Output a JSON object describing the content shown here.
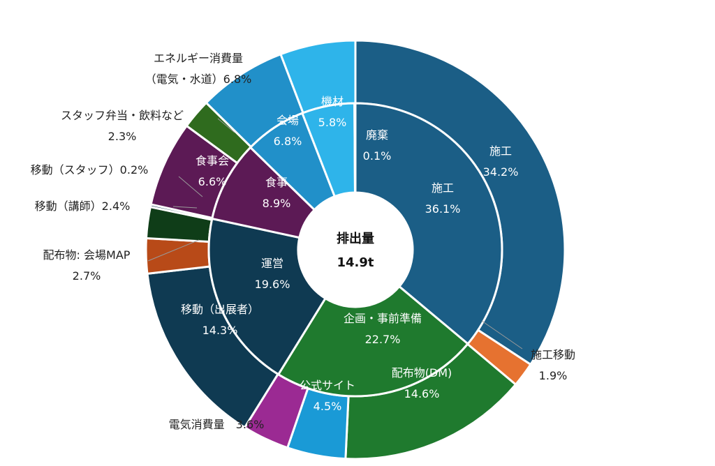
{
  "chart_data": {
    "type": "pie",
    "center_label": {
      "title": "排出量",
      "total": "14.9t"
    },
    "inner_ring": [
      {
        "name": "施工",
        "value": 36.1,
        "color": "#1b5e86"
      },
      {
        "name": "企画・事前準備",
        "value": 22.7,
        "color": "#1f7a2e"
      },
      {
        "name": "運営",
        "value": 19.6,
        "color": "#0f3a52"
      },
      {
        "name": "食事",
        "value": 8.9,
        "color": "#5c1a55"
      },
      {
        "name": "会場",
        "value": 6.8,
        "color": "#2190c9"
      },
      {
        "name": "機材",
        "value": 5.8,
        "color": "#2eb4ea"
      },
      {
        "name": "廃棄",
        "value": 0.1,
        "color": "#1b5e86"
      }
    ],
    "outer_ring": [
      {
        "name": "施工",
        "value": 34.2,
        "color": "#1b5e86"
      },
      {
        "name": "施工移動",
        "value": 1.9,
        "color": "#e67230"
      },
      {
        "name": "配布物(DM)",
        "value": 14.6,
        "color": "#1f7a2e"
      },
      {
        "name": "公式サイト",
        "value": 4.5,
        "color": "#1a9ad6"
      },
      {
        "name": "電気消費量",
        "value": 3.6,
        "color": "#9b2a93"
      },
      {
        "name": "移動（出展者）",
        "value": 14.3,
        "color": "#0f3a52"
      },
      {
        "name": "配布物: 会場MAP",
        "value": 2.7,
        "color": "#b84a18"
      },
      {
        "name": "移動（講師）",
        "value": 2.4,
        "color": "#0f3d18"
      },
      {
        "name": "移動（スタッフ）",
        "value": 0.2,
        "color": "#0f3a52"
      },
      {
        "name": "食事会",
        "value": 6.6,
        "color": "#5c1a55"
      },
      {
        "name": "スタッフ弁当・飲料など",
        "value": 2.3,
        "color": "#2f6b1e"
      },
      {
        "name": "エネルギー消費量（電気・水道）",
        "value": 6.8,
        "color": "#2190c9"
      },
      {
        "name": "機材",
        "value": 5.8,
        "color": "#2eb4ea"
      }
    ],
    "labels": [
      {
        "lines": [
          "施工",
          "34.2%"
        ],
        "color": "#ffffff"
      },
      {
        "lines": [
          "施工移動",
          "1.9%"
        ],
        "color": "#222222"
      },
      {
        "lines": [
          "配布物(DM)",
          "14.6%"
        ],
        "color": "#ffffff"
      },
      {
        "lines": [
          "公式サイト",
          "4.5%"
        ],
        "color": "#ffffff"
      },
      {
        "lines": [
          "電気消費量　3.6%"
        ],
        "color": "#222222"
      },
      {
        "lines": [
          "移動（出展者）",
          "14.3%"
        ],
        "color": "#ffffff"
      },
      {
        "lines": [
          "配布物: 会場MAP",
          "2.7%"
        ],
        "color": "#222222"
      },
      {
        "lines": [
          "移動（講師）2.4%"
        ],
        "color": "#222222"
      },
      {
        "lines": [
          "移動（スタッフ）0.2%"
        ],
        "color": "#222222"
      },
      {
        "lines": [
          "食事会",
          "6.6%"
        ],
        "color": "#ffffff"
      },
      {
        "lines": [
          "スタッフ弁当・飲料など",
          "2.3%"
        ],
        "color": "#222222"
      },
      {
        "lines": [
          "エネルギー消費量",
          "（電気・水道）6.8%"
        ],
        "color": "#222222"
      },
      {
        "lines": [
          "機材",
          "5.8%"
        ],
        "color": "#ffffff"
      },
      {
        "lines": [
          "施工",
          "36.1%"
        ],
        "color": "#ffffff"
      },
      {
        "lines": [
          "企画・事前準備",
          "22.7%"
        ],
        "color": "#ffffff"
      },
      {
        "lines": [
          "運営",
          "19.6%"
        ],
        "color": "#ffffff"
      },
      {
        "lines": [
          "食事",
          "8.9%"
        ],
        "color": "#ffffff"
      },
      {
        "lines": [
          "会場",
          "6.8%"
        ],
        "color": "#ffffff"
      },
      {
        "lines": [
          "廃棄",
          "0.1%"
        ],
        "color": "#ffffff"
      }
    ]
  }
}
